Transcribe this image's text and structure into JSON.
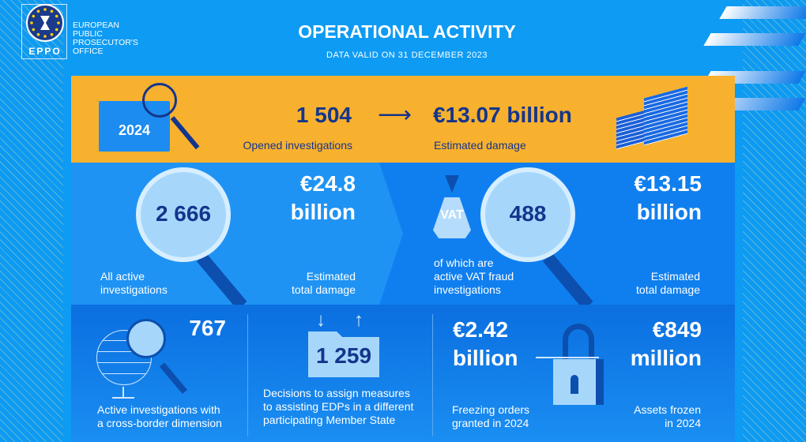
{
  "logo": {
    "abbr": "EPPO",
    "name": [
      "EUROPEAN",
      "PUBLIC",
      "PROSECUTOR'S",
      "OFFICE"
    ]
  },
  "header": {
    "title": "OPERATIONAL ACTIVITY",
    "subtitle": "DATA VALID ON 31 DECEMBER 2023"
  },
  "top": {
    "year": "2024",
    "opened_value": "1 504",
    "opened_label": "Opened investigations",
    "damage_value": "€13.07 billion",
    "damage_label": "Estimated damage"
  },
  "middle_left": {
    "value": "2 666",
    "label": [
      "All active",
      "investigations"
    ],
    "damage_value": [
      "€24.8",
      "billion"
    ],
    "damage_label": [
      "Estimated",
      "total damage"
    ]
  },
  "middle_right": {
    "tag": "VAT",
    "value": "488",
    "label": [
      "of which are",
      "active VAT fraud",
      "investigations"
    ],
    "damage_value": [
      "€13.15",
      "billion"
    ],
    "damage_label": [
      "Estimated",
      "total damage"
    ]
  },
  "bottom": {
    "cross_border": {
      "value": "767",
      "label": [
        "Active investigations with",
        "a cross-border dimension"
      ]
    },
    "decisions": {
      "value": "1 259",
      "label": [
        "Decisions to assign measures",
        "to assisting EDPs in a different",
        "participating Member State"
      ]
    },
    "freezing": {
      "value": [
        "€2.42",
        "billion"
      ],
      "label": [
        "Freezing orders",
        "granted in 2024"
      ]
    },
    "assets": {
      "value": [
        "€849",
        "million"
      ],
      "label": [
        "Assets frozen",
        "in 2024"
      ]
    }
  },
  "colors": {
    "background": "#0e9bf3",
    "yellow": "#f8b12e",
    "navy": "#14358c"
  }
}
